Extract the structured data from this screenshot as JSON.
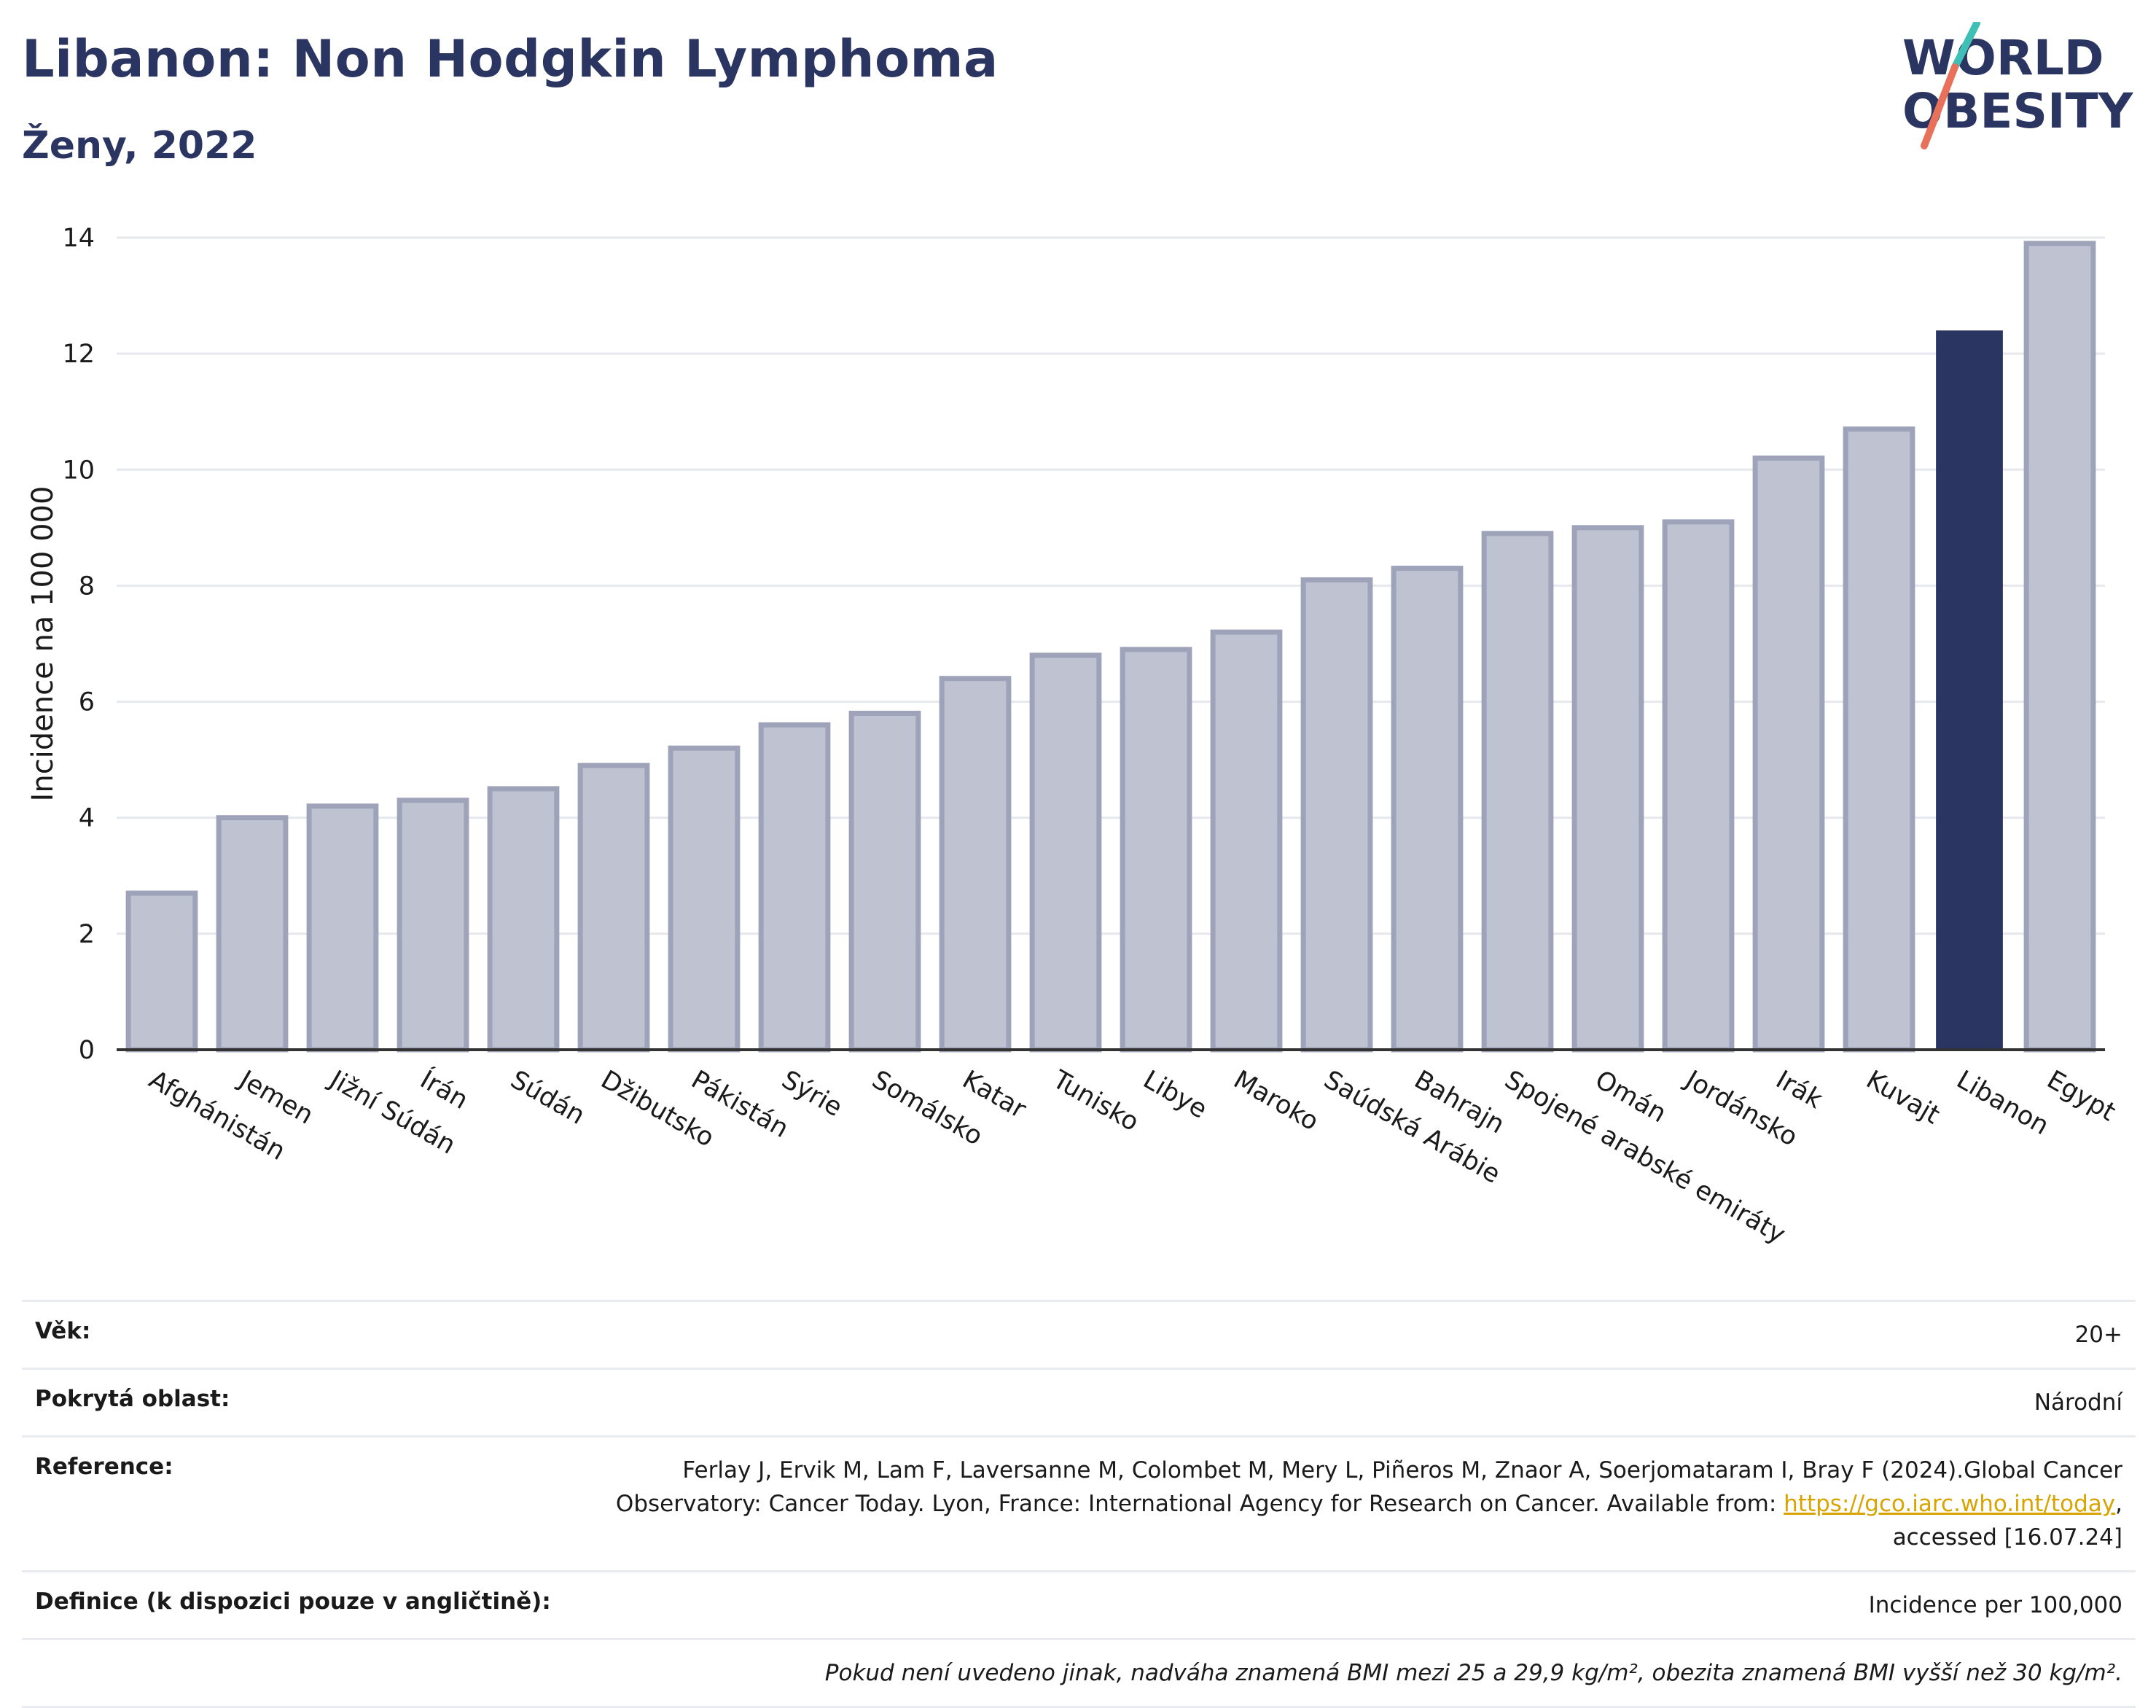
{
  "header": {
    "title": "Libanon: Non Hodgkin Lymphoma",
    "subtitle": "Ženy, 2022",
    "logo_line1": "WORLD",
    "logo_line2": "OBESITY"
  },
  "colors": {
    "bar": "#bfc2d0",
    "bar_border": "#9ea3b9",
    "highlight": "#2b3561",
    "title": "#2b3561",
    "grid": "#e6e8ee",
    "logo_teal": "#3fbfb5",
    "logo_coral": "#e8715c"
  },
  "chart_data": {
    "type": "bar",
    "ylabel": "Incidence na 100 000",
    "ylim": [
      0,
      14
    ],
    "yticks": [
      "0",
      "2",
      "4",
      "6",
      "8",
      "10",
      "12",
      "14"
    ],
    "highlight": "Libanon",
    "categories": [
      "Afghánistán",
      "Jemen",
      "Jižní Súdán",
      "Írán",
      "Súdán",
      "Džibutsko",
      "Pákistán",
      "Sýrie",
      "Somálsko",
      "Katar",
      "Tunisko",
      "Libye",
      "Maroko",
      "Saúdská Arábie",
      "Bahrajn",
      "Spojené arabské emiráty",
      "Omán",
      "Jordánsko",
      "Irák",
      "Kuvajt",
      "Libanon",
      "Egypt"
    ],
    "values": [
      2.7,
      4.0,
      4.2,
      4.3,
      4.5,
      4.9,
      5.2,
      5.6,
      5.8,
      6.4,
      6.8,
      6.9,
      7.2,
      8.1,
      8.3,
      8.9,
      9.0,
      9.1,
      10.2,
      10.7,
      12.4,
      13.9
    ]
  },
  "info": {
    "age_label": "Věk:",
    "age_value": "20+",
    "area_label": "Pokrytá oblast:",
    "area_value": "Národní",
    "ref_label": "Reference:",
    "ref_text_1": "Ferlay J, Ervik M, Lam F, Laversanne M, Colombet M, Mery L, Piñeros M, Znaor A, Soerjomataram I, Bray F (2024).Global Cancer Observatory: Cancer Today. Lyon, France: International Agency for Research on Cancer. Available from: ",
    "ref_link": "https://gco.iarc.who.int/today",
    "ref_text_2": ", accessed [16.07.24]",
    "def_label": "Definice (k dispozici pouze v angličtině):",
    "def_value": "Incidence per 100,000",
    "note": "Pokud není uvedeno jinak, nadváha znamená BMI mezi 25 a 29,9 kg/m², obezita znamená BMI vyšší než 30 kg/m²."
  }
}
